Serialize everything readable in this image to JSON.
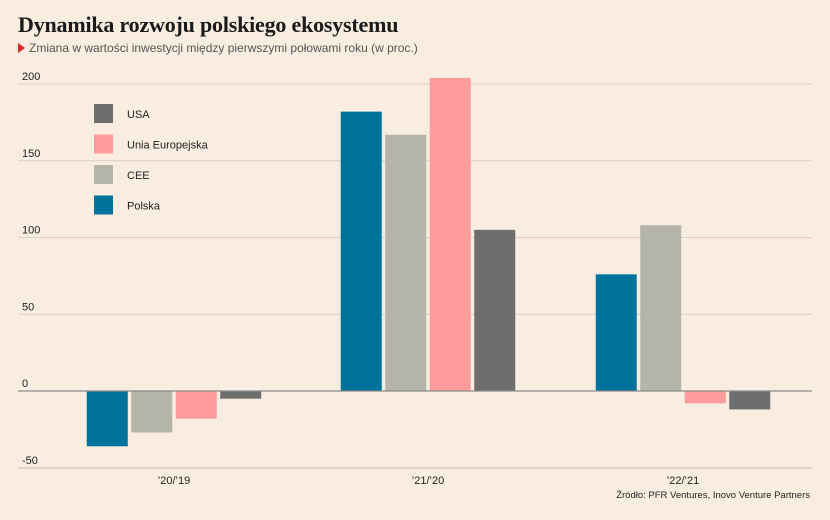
{
  "header": {
    "title": "Dynamika rozwoju polskiego ekosystemu",
    "subtitle": "Zmiana w wartości inwestycji między pierwszymi połowami roku (w proc.)"
  },
  "footer": {
    "source": "Źródło: PFR Ventures, Inovo Venture Partners"
  },
  "chart_data": {
    "type": "bar",
    "title": "Dynamika rozwoju polskiego ekosystemu",
    "subtitle": "Zmiana w wartości inwestycji między pierwszymi połowami roku (w proc.)",
    "categories": [
      "’20/’19",
      "’21/’20",
      "’22/’21"
    ],
    "series": [
      {
        "name": "Polska",
        "color": "#00739b",
        "values": [
          -36,
          182,
          76
        ]
      },
      {
        "name": "CEE",
        "color": "#b4b4a8",
        "values": [
          -27,
          167,
          108
        ]
      },
      {
        "name": "Unia Europejska",
        "color": "#fe9b9b",
        "values": [
          -18,
          204,
          -8
        ]
      },
      {
        "name": "USA",
        "color": "#6e6e6e",
        "values": [
          -5,
          105,
          -12
        ]
      }
    ],
    "legend_order": [
      "USA",
      "Unia Europejska",
      "CEE",
      "Polska"
    ],
    "legend_position": "top-left",
    "ylim": [
      -50,
      210
    ],
    "yticks": [
      -50,
      0,
      50,
      100,
      150,
      200
    ],
    "grid": true,
    "xlabel": "",
    "ylabel": ""
  }
}
